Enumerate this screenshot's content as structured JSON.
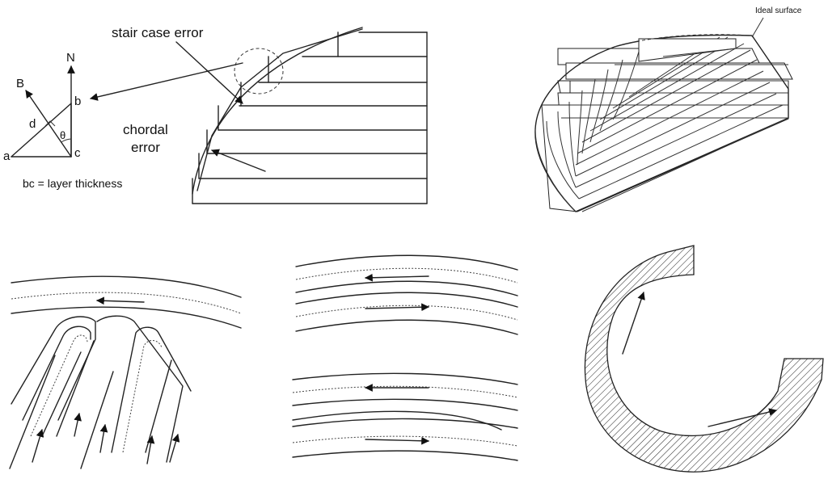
{
  "panel1": {
    "labels": {
      "N": "N",
      "B": "B",
      "a": "a",
      "b": "b",
      "c": "c",
      "d": "d",
      "theta": "θ",
      "stair": "stair case error",
      "chordal_line1": "chordal",
      "chordal_line2": "error",
      "caption": "bc = layer thickness"
    }
  },
  "panel2": {
    "label": "Ideal surface"
  }
}
